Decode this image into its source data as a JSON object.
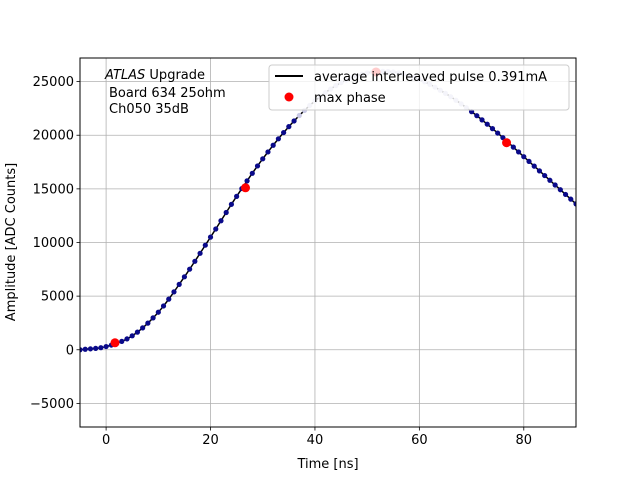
{
  "chart_data": {
    "type": "scatter",
    "xlabel": "Time [ns]",
    "ylabel": "Amplitude [ADC Counts]",
    "xlim": [
      -5,
      90
    ],
    "ylim": [
      -7200,
      27200
    ],
    "x_ticks": [
      0,
      20,
      40,
      60,
      80
    ],
    "y_ticks": [
      -5000,
      0,
      5000,
      10000,
      15000,
      20000,
      25000
    ],
    "grid": true,
    "legend_position": "top-right",
    "annotation": {
      "atlas": "ATLAS",
      "upgrade": "Upgrade",
      "line2": "Board 634 25ohm",
      "line3": "Ch050 35dB"
    },
    "series": [
      {
        "name": "average interleaved pulse 0.391mA",
        "kind": "line-with-points",
        "color": "#000000",
        "points": [
          [
            -5,
            0
          ],
          [
            0,
            300
          ],
          [
            5,
            1300
          ],
          [
            10,
            3500
          ],
          [
            15,
            6800
          ],
          [
            20,
            10500
          ],
          [
            25,
            14300
          ],
          [
            30,
            17800
          ],
          [
            35,
            20800
          ],
          [
            40,
            23200
          ],
          [
            45,
            24900
          ],
          [
            50,
            25800
          ],
          [
            55,
            25900
          ],
          [
            60,
            25200
          ],
          [
            65,
            23900
          ],
          [
            70,
            22200
          ],
          [
            75,
            20200
          ],
          [
            80,
            18000
          ],
          [
            85,
            15800
          ],
          [
            90,
            13600
          ]
        ],
        "faded_x_range": [
          36,
          70
        ]
      },
      {
        "name": "max phase",
        "kind": "markers",
        "color": "#ff0000",
        "x": [
          1.7,
          26.7,
          51.7,
          76.7
        ],
        "y": [
          650,
          15100,
          25900,
          19300
        ]
      }
    ]
  }
}
